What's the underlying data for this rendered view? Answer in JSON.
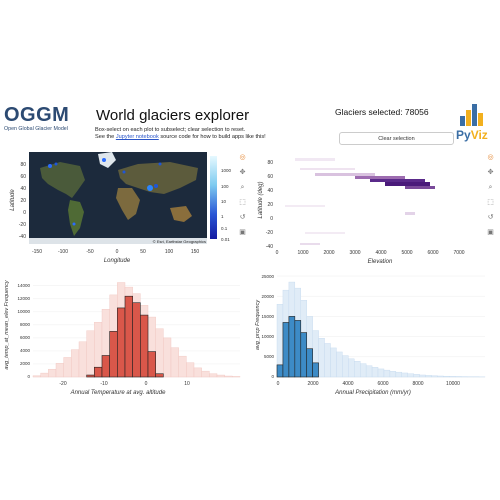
{
  "header": {
    "logo_big": "OGGM",
    "logo_small": "Open Global Glacier Model",
    "title": "World glaciers explorer",
    "desc_line1": "Box-select on each plot to subselect; clear selection to reset.",
    "desc_line2_pre": "See the ",
    "desc_line2_link": "Jupyter notebook",
    "desc_line2_post": " source code for how to build apps like this!",
    "selected_label": "Glaciers selected: 78056",
    "clear_button": "Clear selection",
    "pyviz_py": "Py",
    "pyviz_viz": "Viz"
  },
  "map": {
    "ylabel": "Latitude",
    "xlabel": "Longitude",
    "xticks": [
      "-150",
      "-100",
      "-50",
      "0",
      "50",
      "100",
      "150"
    ],
    "yticks": [
      "80",
      "60",
      "40",
      "20",
      "0",
      "-20",
      "-40"
    ],
    "attribution": "© Esri, Earthstar Geographics",
    "colorbar_ticks": [
      "1000",
      "100",
      "10",
      "1",
      "0.1",
      "0.01"
    ]
  },
  "heatmap": {
    "ylabel": "Latitude (deg)",
    "xlabel": "Elevation",
    "xticks": [
      "0",
      "1000",
      "2000",
      "3000",
      "4000",
      "5000",
      "6000",
      "7000"
    ],
    "yticks": [
      "80",
      "60",
      "40",
      "20",
      "0",
      "-20",
      "-40"
    ]
  },
  "temp_hist": {
    "ylabel": "avg_temp_at_mean_elev Frequency",
    "xlabel": "Annual Temperature at avg. altitude",
    "xticks": [
      "-20",
      "-10",
      "0",
      "10"
    ],
    "yticks": [
      "0",
      "2000",
      "4000",
      "6000",
      "8000",
      "10000",
      "12000",
      "14000"
    ],
    "color": "#d9574a"
  },
  "precip_hist": {
    "ylabel": "avg_prcp Frequency",
    "xlabel": "Annual Precipitation (mm/yr)",
    "xticks": [
      "0",
      "2000",
      "4000",
      "6000",
      "8000",
      "10000"
    ],
    "yticks": [
      "0",
      "5000",
      "10000",
      "15000",
      "20000",
      "25000"
    ],
    "color": "#3d8bc6"
  },
  "chart_data": [
    {
      "type": "bar",
      "title": "",
      "xlabel": "Annual Temperature at avg. altitude",
      "ylabel": "avg_temp_at_mean_elev Frequency",
      "ylim": [
        0,
        15500
      ],
      "x": [
        -26,
        -24.5,
        -23,
        -21.5,
        -20,
        -18.5,
        -17,
        -15.5,
        -14,
        -12.5,
        -11,
        -9.5,
        -8,
        -6.5,
        -5,
        -3.5,
        -2,
        -0.5,
        1,
        2.5,
        4,
        5.5,
        7,
        8.5,
        10,
        11.5,
        13
      ],
      "series": [
        {
          "values": [
            200,
            600,
            1200,
            2100,
            3000,
            4200,
            5400,
            7100,
            8400,
            10400,
            12600,
            14500,
            13800,
            12800,
            11000,
            9200,
            7400,
            6000,
            4500,
            3200,
            2200,
            1400,
            900,
            500,
            300,
            150,
            80
          ]
        },
        {
          "values": [
            0,
            0,
            0,
            0,
            0,
            0,
            0,
            300,
            1500,
            3300,
            7000,
            10600,
            12400,
            11400,
            9500,
            3900,
            500,
            0,
            0,
            0,
            0,
            0,
            0,
            0,
            0,
            0,
            0
          ]
        }
      ]
    },
    {
      "type": "bar",
      "title": "",
      "xlabel": "Annual Precipitation (mm/yr)",
      "ylabel": "avg_prcp Frequency",
      "ylim": [
        0,
        25000
      ],
      "x": [
        150,
        450,
        750,
        1050,
        1350,
        1650,
        1950,
        2250,
        2550,
        2850,
        3150,
        3450,
        3750,
        4050,
        4350,
        4650,
        4950,
        5250,
        5550,
        5850,
        6150,
        6450,
        6750,
        7050,
        7350,
        7650,
        7950,
        8250,
        8550,
        8850,
        9150,
        9450,
        9750,
        10050,
        10350
      ],
      "series": [
        {
          "values": [
            18000,
            21500,
            23500,
            22000,
            19000,
            15000,
            11500,
            9600,
            8300,
            7200,
            6200,
            5300,
            4500,
            3900,
            3300,
            2800,
            2400,
            2000,
            1700,
            1400,
            1200,
            1000,
            800,
            650,
            500,
            400,
            320,
            250,
            200,
            150,
            120,
            90,
            70,
            50,
            40
          ]
        },
        {
          "values": [
            3000,
            13500,
            15000,
            14000,
            11000,
            7000,
            3500,
            0,
            0,
            0,
            0,
            0,
            0,
            0,
            0,
            0,
            0,
            0,
            0,
            0,
            0,
            0,
            0,
            0,
            0,
            0,
            0,
            0,
            0,
            0,
            0,
            0,
            0,
            0,
            0
          ]
        }
      ]
    }
  ]
}
